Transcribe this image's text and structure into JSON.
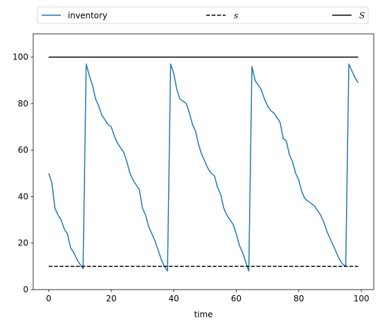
{
  "chart_data": {
    "type": "line",
    "xlabel": "time",
    "ylabel": "",
    "xlim": [
      -4.95,
      103.95
    ],
    "ylim": [
      0,
      110
    ],
    "xticks": [
      0,
      20,
      40,
      60,
      80,
      100
    ],
    "yticks": [
      0,
      20,
      40,
      60,
      80,
      100
    ],
    "grid": false,
    "legend_position": "top, above plot, spanning full width",
    "series": [
      {
        "name": "inventory",
        "color": "#1f77b4",
        "style": "solid",
        "x": [
          0,
          1,
          2,
          3,
          4,
          5,
          6,
          7,
          8,
          9,
          10,
          11,
          12,
          13,
          14,
          15,
          16,
          17,
          18,
          19,
          20,
          21,
          22,
          23,
          24,
          25,
          26,
          27,
          28,
          29,
          30,
          31,
          32,
          33,
          34,
          35,
          36,
          37,
          38,
          39,
          40,
          41,
          42,
          43,
          44,
          45,
          46,
          47,
          48,
          49,
          50,
          51,
          52,
          53,
          54,
          55,
          56,
          57,
          58,
          59,
          60,
          61,
          62,
          63,
          64,
          65,
          66,
          67,
          68,
          69,
          70,
          71,
          72,
          73,
          74,
          75,
          76,
          77,
          78,
          79,
          80,
          81,
          82,
          83,
          84,
          85,
          86,
          87,
          88,
          89,
          90,
          91,
          92,
          93,
          94,
          95,
          96,
          97,
          98,
          99
        ],
        "y": [
          50,
          46,
          35,
          32,
          30,
          26,
          24,
          18,
          16,
          13,
          11,
          9,
          97,
          92,
          88,
          82,
          79,
          75,
          73,
          71,
          70,
          66,
          63,
          61,
          59,
          55,
          50,
          47,
          45,
          43,
          35,
          32,
          27,
          24,
          21,
          17,
          13,
          10,
          8,
          97,
          93,
          86,
          82,
          81,
          80,
          76,
          71,
          68,
          62,
          58,
          55,
          52,
          50,
          49,
          44,
          41,
          35,
          32,
          30,
          28,
          24,
          19,
          16,
          12,
          8,
          96,
          90,
          88,
          86,
          82,
          79,
          77,
          76,
          74,
          72,
          65,
          64,
          58,
          55,
          50,
          47,
          42,
          39,
          38,
          37,
          36,
          34,
          32,
          29,
          25,
          22,
          19,
          16,
          13,
          11,
          10,
          97,
          94,
          91,
          89
        ]
      },
      {
        "name": "s",
        "color": "#000000",
        "style": "dashed",
        "x": [
          0,
          99
        ],
        "y": [
          10,
          10
        ]
      },
      {
        "name": "S",
        "color": "#000000",
        "style": "solid",
        "x": [
          0,
          99
        ],
        "y": [
          100,
          100
        ]
      }
    ]
  }
}
